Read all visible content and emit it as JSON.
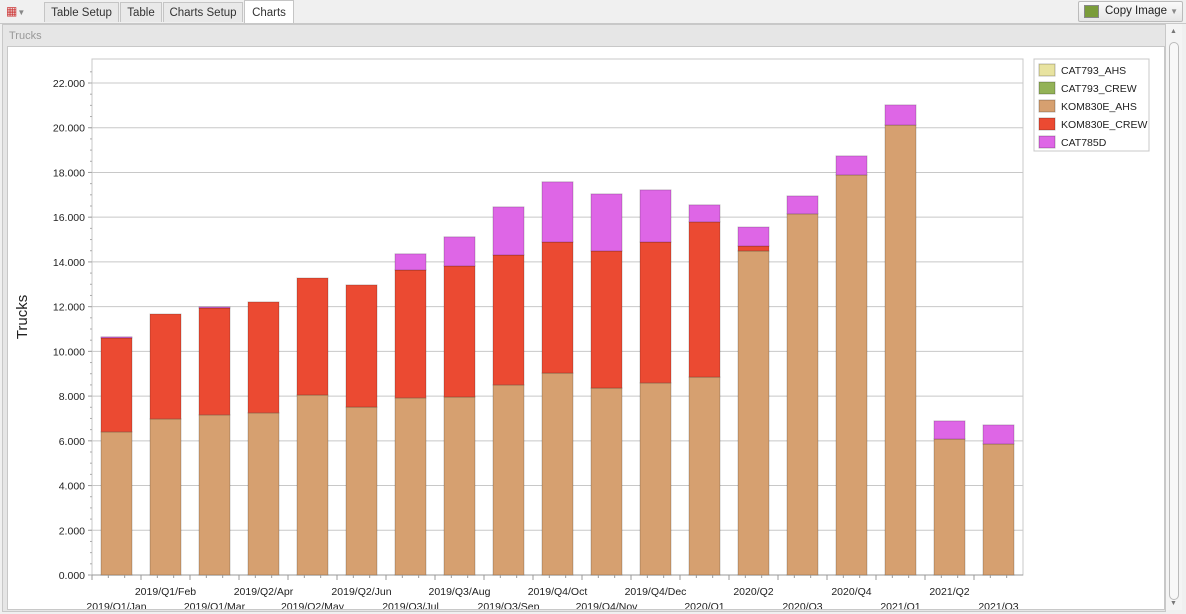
{
  "toolbar": {
    "tabs": [
      "Table Setup",
      "Table",
      "Charts Setup",
      "Charts"
    ],
    "active_tab": "Charts",
    "copy_image": "Copy Image"
  },
  "panel": {
    "title": "Trucks"
  },
  "chart_data": {
    "type": "bar",
    "stacked": true,
    "title": "Trucks",
    "ylabel": "Trucks",
    "xlabel": "",
    "ylim": [
      0,
      23000
    ],
    "yticks": [
      0,
      2000,
      4000,
      6000,
      8000,
      10000,
      12000,
      14000,
      16000,
      18000,
      20000,
      22000
    ],
    "ytick_labels": [
      "0.000",
      "2.000",
      "4.000",
      "6.000",
      "8.000",
      "10.000",
      "12.000",
      "14.000",
      "16.000",
      "18.000",
      "20.000",
      "22.000"
    ],
    "categories": [
      "2019/Q1/Jan",
      "2019/Q1/Feb",
      "2019/Q1/Mar",
      "2019/Q2/Apr",
      "2019/Q2/May",
      "2019/Q2/Jun",
      "2019/Q3/Jul",
      "2019/Q3/Aug",
      "2019/Q3/Sep",
      "2019/Q4/Oct",
      "2019/Q4/Nov",
      "2019/Q4/Dec",
      "2020/Q1",
      "2020/Q2",
      "2020/Q3",
      "2020/Q4",
      "2021/Q1",
      "2021/Q2",
      "2021/Q3"
    ],
    "legend_position": "top-right",
    "grid": true,
    "series": [
      {
        "name": "CAT793_AHS",
        "color": "#e8e3a0",
        "values": [
          0,
          0,
          0,
          0,
          0,
          0,
          0,
          0,
          0,
          0,
          0,
          0,
          0,
          0,
          0,
          0,
          0,
          0,
          0
        ]
      },
      {
        "name": "CAT793_CREW",
        "color": "#93b257",
        "values": [
          0,
          0,
          0,
          0,
          0,
          0,
          0,
          0,
          0,
          0,
          0,
          0,
          0,
          0,
          0,
          0,
          0,
          0,
          0
        ]
      },
      {
        "name": "KOM830E_AHS",
        "color": "#d6a070",
        "values": [
          6400,
          6980,
          7160,
          7250,
          8050,
          7510,
          7920,
          7960,
          8500,
          9030,
          8360,
          8590,
          8850,
          14490,
          16150,
          17890,
          20120,
          6080,
          5860
        ]
      },
      {
        "name": "KOM830E_CREW",
        "color": "#eb4a32",
        "values": [
          4200,
          4690,
          4780,
          4960,
          5230,
          5460,
          5720,
          5860,
          5810,
          5860,
          6130,
          6300,
          6940,
          220,
          0,
          0,
          0,
          0,
          0
        ]
      },
      {
        "name": "CAT785D",
        "color": "#de66e6",
        "values": [
          50,
          0,
          50,
          0,
          0,
          0,
          720,
          1300,
          2150,
          2690,
          2550,
          2330,
          760,
          850,
          800,
          850,
          900,
          810,
          850
        ]
      }
    ]
  }
}
